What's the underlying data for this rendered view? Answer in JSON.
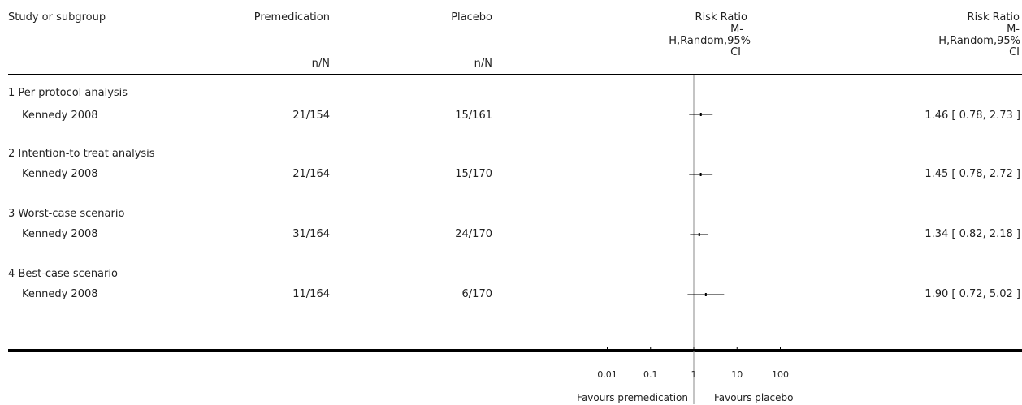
{
  "header": {
    "study_col": "Study or subgroup",
    "treat_col": "Premedication",
    "treat_sub": "n/N",
    "ctrl_col": "Placebo",
    "ctrl_sub": "n/N",
    "plot_col": "Risk Ratio",
    "plot_sub": [
      "M-",
      "H,Random,95%",
      "CI"
    ],
    "est_col": "Risk Ratio",
    "est_sub": [
      "M-",
      "H,Random,95%",
      "CI"
    ]
  },
  "subgroups": [
    {
      "title": "1 Per protocol analysis",
      "study": "Kennedy 2008",
      "treat": "21/154",
      "ctrl": "15/161",
      "ci_text": "1.46 [ 0.78, 2.73 ]"
    },
    {
      "title": "2 Intention-to treat analysis",
      "study": "Kennedy 2008",
      "treat": "21/164",
      "ctrl": "15/170",
      "ci_text": "1.45 [ 0.78, 2.72 ]"
    },
    {
      "title": "3 Worst-case scenario",
      "study": "Kennedy 2008",
      "treat": "31/164",
      "ctrl": "24/170",
      "ci_text": "1.34 [ 0.82, 2.18 ]"
    },
    {
      "title": "4 Best-case scenario",
      "study": "Kennedy 2008",
      "treat": "11/164",
      "ctrl": "6/170",
      "ci_text": "1.90 [ 0.72, 5.02 ]"
    }
  ],
  "footer": {
    "favours_left": "Favours premedication",
    "favours_right": "Favours placebo"
  },
  "chart_data": {
    "type": "forest",
    "x_scale": "log",
    "xlim": [
      0.01,
      100
    ],
    "ticks": [
      0.01,
      0.1,
      1,
      10,
      100
    ],
    "tick_labels": [
      "0.01",
      "0.1",
      "1",
      "10",
      "100"
    ],
    "reference_line": 1,
    "series": [
      {
        "name": "Kennedy 2008",
        "point": 1.46,
        "lower": 0.78,
        "upper": 2.73
      },
      {
        "name": "Kennedy 2008",
        "point": 1.45,
        "lower": 0.78,
        "upper": 2.72
      },
      {
        "name": "Kennedy 2008",
        "point": 1.34,
        "lower": 0.82,
        "upper": 2.18
      },
      {
        "name": "Kennedy 2008",
        "point": 1.9,
        "lower": 0.72,
        "upper": 5.02
      }
    ]
  }
}
